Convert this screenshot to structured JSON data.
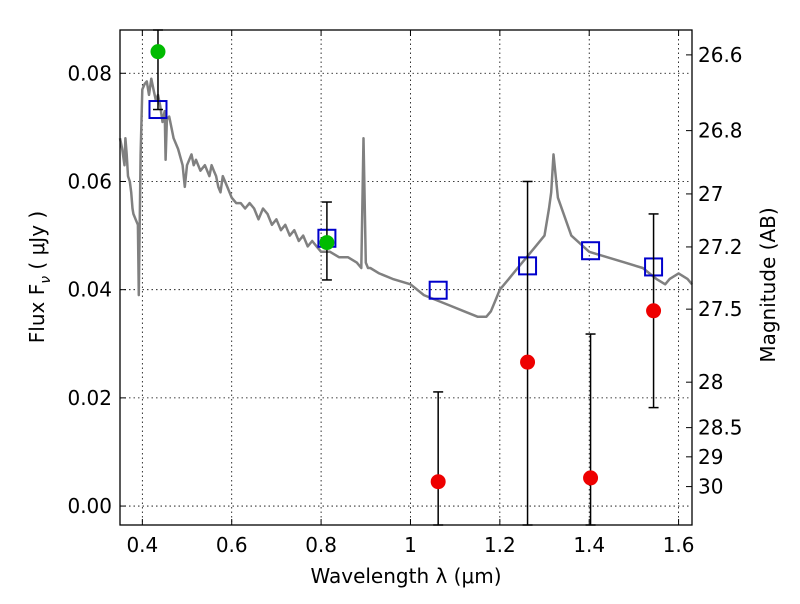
{
  "chart_data": {
    "type": "scatter",
    "xlabel": "Wavelength  λ (μm)",
    "ylabel_prefix": "Flux  F",
    "ylabel_sub": "ν",
    "ylabel_suffix": " ( μJy )",
    "ylabel2": "Magnitude (AB)",
    "xlim": [
      0.35,
      1.63
    ],
    "ylim": [
      -0.0035,
      0.088
    ],
    "grid": true,
    "x_ticks": [
      0.4,
      0.6,
      0.8,
      1.0,
      1.2,
      1.4,
      1.6
    ],
    "x_tick_labels": [
      "0.4",
      "0.6",
      "0.8",
      "1",
      "1.2",
      "1.4",
      "1.6"
    ],
    "y_ticks": [
      0.0,
      0.02,
      0.04,
      0.06,
      0.08
    ],
    "y_tick_labels": [
      "0.00",
      "0.02",
      "0.04",
      "0.06",
      "0.08"
    ],
    "right_ticks": [
      {
        "label": "26.6",
        "flux": 0.0834
      },
      {
        "label": "26.8",
        "flux": 0.0694
      },
      {
        "label": "27",
        "flux": 0.0577
      },
      {
        "label": "27.2",
        "flux": 0.0479
      },
      {
        "label": "27.5",
        "flux": 0.0364
      },
      {
        "label": "28",
        "flux": 0.0229
      },
      {
        "label": "28.5",
        "flux": 0.0145
      },
      {
        "label": "29",
        "flux": 0.0091
      },
      {
        "label": "30",
        "flux": 0.0036
      }
    ],
    "series": [
      {
        "kind": "line",
        "color": "#808080",
        "x": [
          0.35,
          0.355,
          0.36,
          0.362,
          0.365,
          0.368,
          0.372,
          0.375,
          0.378,
          0.38,
          0.385,
          0.39,
          0.392,
          0.396,
          0.4,
          0.405,
          0.41,
          0.415,
          0.42,
          0.425,
          0.43,
          0.435,
          0.44,
          0.445,
          0.45,
          0.452,
          0.455,
          0.46,
          0.465,
          0.47,
          0.48,
          0.49,
          0.495,
          0.5,
          0.51,
          0.515,
          0.52,
          0.53,
          0.54,
          0.55,
          0.555,
          0.56,
          0.565,
          0.57,
          0.575,
          0.58,
          0.59,
          0.6,
          0.61,
          0.62,
          0.63,
          0.64,
          0.65,
          0.66,
          0.67,
          0.68,
          0.69,
          0.7,
          0.71,
          0.72,
          0.73,
          0.74,
          0.75,
          0.76,
          0.77,
          0.78,
          0.79,
          0.8,
          0.82,
          0.84,
          0.86,
          0.88,
          0.89,
          0.895,
          0.9,
          0.905,
          0.91,
          0.93,
          0.96,
          1.0,
          1.03,
          1.06,
          1.09,
          1.12,
          1.15,
          1.17,
          1.18,
          1.19,
          1.2,
          1.22,
          1.24,
          1.26,
          1.28,
          1.3,
          1.31,
          1.315,
          1.32,
          1.33,
          1.36,
          1.4,
          1.44,
          1.48,
          1.52,
          1.55,
          1.57,
          1.58,
          1.6,
          1.62,
          1.63
        ],
        "y": [
          0.068,
          0.066,
          0.063,
          0.068,
          0.065,
          0.061,
          0.06,
          0.058,
          0.055,
          0.054,
          0.053,
          0.052,
          0.039,
          0.065,
          0.077,
          0.078,
          0.0785,
          0.076,
          0.079,
          0.077,
          0.075,
          0.076,
          0.074,
          0.071,
          0.073,
          0.064,
          0.0715,
          0.072,
          0.07,
          0.068,
          0.066,
          0.063,
          0.059,
          0.063,
          0.065,
          0.063,
          0.064,
          0.062,
          0.063,
          0.061,
          0.063,
          0.062,
          0.061,
          0.059,
          0.058,
          0.061,
          0.059,
          0.057,
          0.056,
          0.056,
          0.055,
          0.056,
          0.055,
          0.053,
          0.055,
          0.054,
          0.052,
          0.053,
          0.051,
          0.052,
          0.05,
          0.051,
          0.049,
          0.05,
          0.048,
          0.049,
          0.048,
          0.047,
          0.047,
          0.046,
          0.046,
          0.045,
          0.044,
          0.068,
          0.045,
          0.044,
          0.044,
          0.043,
          0.042,
          0.041,
          0.039,
          0.038,
          0.037,
          0.036,
          0.035,
          0.035,
          0.036,
          0.038,
          0.04,
          0.042,
          0.044,
          0.046,
          0.048,
          0.05,
          0.055,
          0.058,
          0.065,
          0.057,
          0.05,
          0.047,
          0.046,
          0.045,
          0.044,
          0.042,
          0.041,
          0.042,
          0.043,
          0.042,
          0.041
        ]
      },
      {
        "kind": "markers",
        "marker": "square",
        "color": "#0000cc",
        "x": [
          0.435,
          0.813,
          1.062,
          1.262,
          1.403,
          1.544
        ],
        "y": [
          0.0733,
          0.0495,
          0.0399,
          0.0444,
          0.0472,
          0.0442
        ]
      },
      {
        "kind": "markers",
        "marker": "circle",
        "color": "#00bb00",
        "x": [
          0.435,
          0.813
        ],
        "y": [
          0.084,
          0.0487
        ],
        "yerr_lo": [
          0.0733,
          0.0418
        ],
        "yerr_hi": [
          0.088,
          0.0562
        ]
      },
      {
        "kind": "markers",
        "marker": "circle",
        "color": "#ee0000",
        "x": [
          1.062,
          1.262,
          1.403,
          1.544
        ],
        "y": [
          0.0045,
          0.0266,
          0.0052,
          0.0361
        ],
        "yerr_lo": [
          -0.0035,
          -0.0035,
          -0.0035,
          0.0182
        ],
        "yerr_hi": [
          0.0211,
          0.06,
          0.0318,
          0.054
        ]
      }
    ]
  }
}
